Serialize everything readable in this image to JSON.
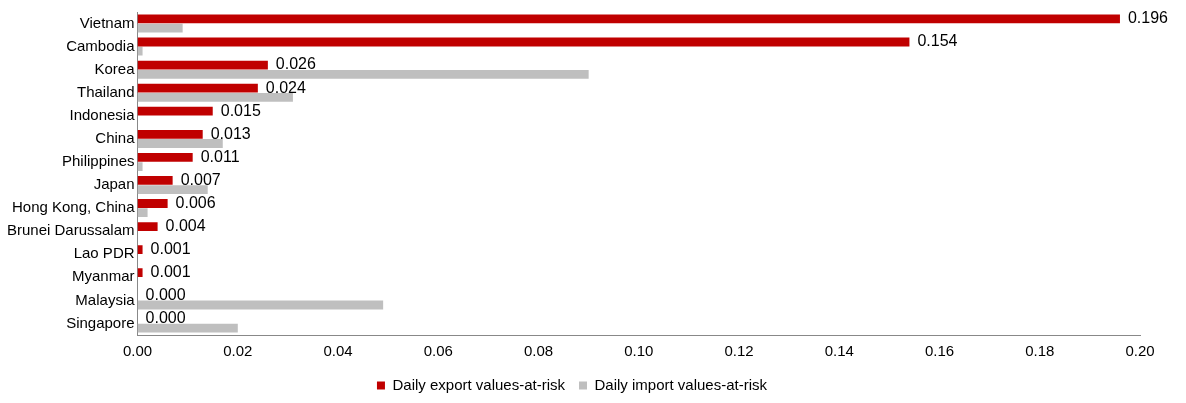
{
  "chart_data": {
    "type": "bar",
    "orientation": "horizontal",
    "categories": [
      "Vietnam",
      "Cambodia",
      "Korea",
      "Thailand",
      "Indonesia",
      "China",
      "Philippines",
      "Japan",
      "Hong Kong, China",
      "Brunei Darussalam",
      "Lao PDR",
      "Myanmar",
      "Malaysia",
      "Singapore"
    ],
    "series": [
      {
        "name": "Daily export values-at-risk",
        "color": "#c00000",
        "values": [
          0.196,
          0.154,
          0.026,
          0.024,
          0.015,
          0.013,
          0.011,
          0.007,
          0.006,
          0.004,
          0.001,
          0.001,
          0.0,
          0.0
        ],
        "value_labels": [
          "0.196",
          "0.154",
          "0.026",
          "0.024",
          "0.015",
          "0.013",
          "0.011",
          "0.007",
          "0.006",
          "0.004",
          "0.001",
          "0.001",
          "0.000",
          "0.000"
        ]
      },
      {
        "name": "Daily import values-at-risk",
        "color": "#bfbfbf",
        "values": [
          0.009,
          0.001,
          0.09,
          0.031,
          0,
          0.017,
          0.001,
          0.014,
          0.002,
          0,
          0,
          0,
          0.049,
          0.02
        ]
      }
    ],
    "xlim": [
      0,
      0.2
    ],
    "xticks": [
      {
        "value": 0,
        "label": "0.00"
      },
      {
        "value": 0.02,
        "label": "0.02"
      },
      {
        "value": 0.04,
        "label": "0.04"
      },
      {
        "value": 0.06,
        "label": "0.06"
      },
      {
        "value": 0.08,
        "label": "0.08"
      },
      {
        "value": 0.1,
        "label": "0.10"
      },
      {
        "value": 0.12,
        "label": "0.12"
      },
      {
        "value": 0.14,
        "label": "0.14"
      },
      {
        "value": 0.16,
        "label": "0.16"
      },
      {
        "value": 0.18,
        "label": "0.18"
      },
      {
        "value": 0.2,
        "label": "0.20"
      }
    ],
    "grid": false,
    "legend": "bottom"
  }
}
